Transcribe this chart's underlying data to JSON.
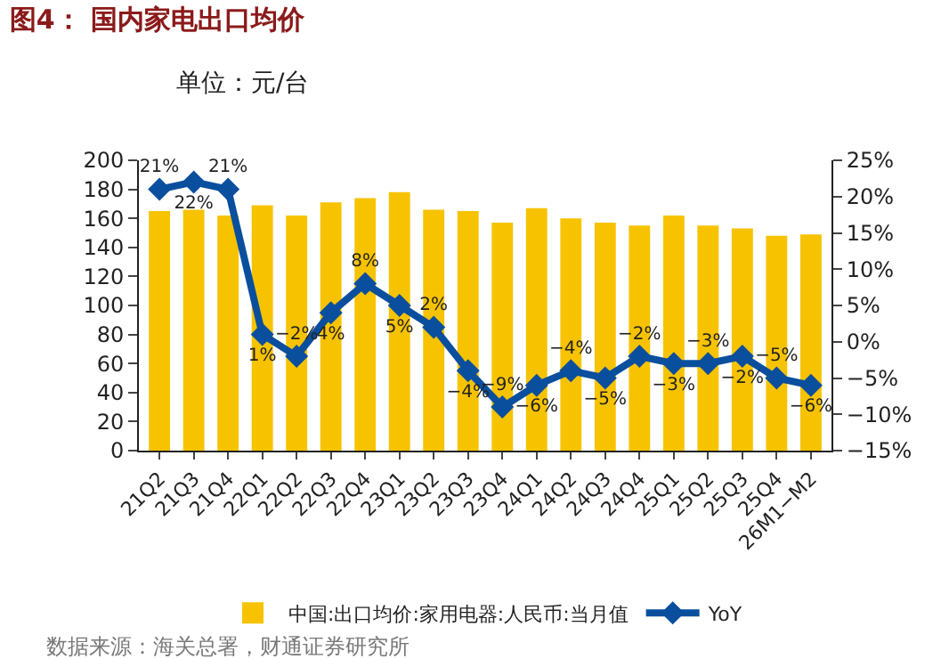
{
  "chart_data": {
    "type": "bar",
    "title": "图4： 国内家电出口均价",
    "subtitle": "单位：元/台",
    "categories": [
      "21Q2",
      "21Q3",
      "21Q4",
      "22Q1",
      "22Q2",
      "22Q3",
      "22Q4",
      "23Q1",
      "23Q2",
      "23Q3",
      "23Q4",
      "24Q1",
      "24Q2",
      "24Q3",
      "24Q4",
      "25Q1",
      "25Q2",
      "25Q3",
      "25Q4",
      "26M1−M2"
    ],
    "series": [
      {
        "name": "中国:出口均价:家用电器:人民币:当月值",
        "color": "#f7c300",
        "values": [
          165,
          166,
          162,
          169,
          162,
          171,
          174,
          178,
          166,
          165,
          157,
          167,
          160,
          157,
          155,
          162,
          155,
          153,
          148,
          149
        ]
      },
      {
        "name": "YoY",
        "type": "line",
        "axis": "y2",
        "color": "#0a4f9e",
        "marker": "diamond",
        "values": [
          21,
          22,
          21,
          1,
          -2,
          4,
          8,
          5,
          2,
          -4,
          -9,
          -6,
          -4,
          -5,
          -2,
          -3,
          -3,
          -2,
          -5,
          -6
        ],
        "value_labels": [
          "21%",
          "22%",
          "21%",
          "1%",
          "−2%",
          "4%",
          "8%",
          "5%",
          "2%",
          "−4%",
          "−9%",
          "−6%",
          "−4%",
          "−5%",
          "−2%",
          "−3%",
          "−3%",
          "−2%",
          "−5%",
          "−6%"
        ]
      }
    ],
    "ylim": [
      0,
      200
    ],
    "yticks": [
      0,
      20,
      40,
      60,
      80,
      100,
      120,
      140,
      160,
      180,
      200
    ],
    "y2lim": [
      -15,
      25
    ],
    "y2ticks": [
      {
        "value": -15,
        "label": "−15%"
      },
      {
        "value": -10,
        "label": "−10%"
      },
      {
        "value": -5,
        "label": "−5%"
      },
      {
        "value": 0,
        "label": "0%"
      },
      {
        "value": 5,
        "label": "5%"
      },
      {
        "value": 10,
        "label": "10%"
      },
      {
        "value": 15,
        "label": "15%"
      },
      {
        "value": 20,
        "label": "20%"
      },
      {
        "value": 25,
        "label": "25%"
      }
    ],
    "legend": "bottom",
    "annotations": [
      "数据来源：海关总署，财通证券研究所"
    ]
  }
}
